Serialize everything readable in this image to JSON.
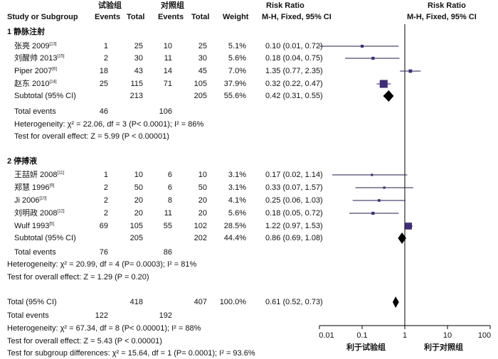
{
  "header": {
    "group1": "试验组",
    "group2": "对照组",
    "rr_title": "Risk Ratio",
    "plot_title": "Risk Ratio",
    "study_col": "Study or Subgroup",
    "events1": "Events",
    "total1": "Total",
    "events2": "Events",
    "total2": "Total",
    "weight": "Weight",
    "method": "M-H, Fixed, 95% CI",
    "plot_method": "M-H, Fixed, 95% CI"
  },
  "subgroups": [
    {
      "title": "1 静脉注射",
      "studies": [
        {
          "name": "张亮 2009",
          "ref": "[13]",
          "e1": "1",
          "t1": "25",
          "e2": "10",
          "t2": "25",
          "weight": "5.1%",
          "ci": "0.10 (0.01, 0.72)"
        },
        {
          "name": "刘醒帅 2013",
          "ref": "[15]",
          "e1": "2",
          "t1": "30",
          "e2": "11",
          "t2": "30",
          "weight": "5.6%",
          "ci": "0.18 (0.04, 0.75)"
        },
        {
          "name": "Piper 2007",
          "ref": "[6]",
          "e1": "18",
          "t1": "43",
          "e2": "14",
          "t2": "45",
          "weight": "7.0%",
          "ci": "1.35 (0.77, 2.35)"
        },
        {
          "name": "赵东 2010",
          "ref": "[14]",
          "e1": "25",
          "t1": "115",
          "e2": "71",
          "t2": "105",
          "weight": "37.9%",
          "ci": "0.32 (0.22, 0.47)"
        }
      ],
      "subtotal": {
        "label": "Subtotal (95% CI)",
        "t1": "213",
        "t2": "205",
        "weight": "55.6%",
        "ci": "0.42 (0.31, 0.55)"
      },
      "total_events": {
        "label": "Total events",
        "e1": "46",
        "e2": "106"
      },
      "heterogeneity": "Heterogeneity: χ² = 22.06, df = 3 (P< 0.0001); I² = 86%",
      "overall": "Test for overall effect: Z = 5.99 (P < 0.00001)"
    },
    {
      "title": "2 停搏液",
      "studies": [
        {
          "name": "王喆妍 2008",
          "ref": "[11]",
          "e1": "1",
          "t1": "10",
          "e2": "6",
          "t2": "10",
          "weight": "3.1%",
          "ci": "0.17 (0.02, 1.14)"
        },
        {
          "name": "郑慧 1996",
          "ref": "[9]",
          "e1": "2",
          "t1": "50",
          "e2": "6",
          "t2": "50",
          "weight": "3.1%",
          "ci": "0.33 (0.07, 1.57)"
        },
        {
          "name": "Ji 2006",
          "ref": "[10]",
          "e1": "2",
          "t1": "20",
          "e2": "8",
          "t2": "20",
          "weight": "4.1%",
          "ci": "0.25 (0.06, 1.03)"
        },
        {
          "name": "刘明政 2008",
          "ref": "[12]",
          "e1": "2",
          "t1": "20",
          "e2": "11",
          "t2": "20",
          "weight": "5.6%",
          "ci": "0.18 (0.05, 0.72)"
        },
        {
          "name": "Wulf 1993",
          "ref": "[5]",
          "e1": "69",
          "t1": "105",
          "e2": "55",
          "t2": "102",
          "weight": "28.5%",
          "ci": "1.22 (0.97, 1.53)"
        }
      ],
      "subtotal": {
        "label": "Subtotal (95% CI)",
        "t1": "205",
        "t2": "202",
        "weight": "44.4%",
        "ci": "0.86 (0.69, 1.08)"
      },
      "total_events": {
        "label": "Total events",
        "e1": "76",
        "e2": "86"
      },
      "heterogeneity": "Heterogeneity: χ² = 20.99, df = 4 (P= 0.0003); I² = 81%",
      "overall": "Test for overall effect: Z = 1.29 (P = 0.20)"
    }
  ],
  "total": {
    "label": "Total (95% CI)",
    "t1": "418",
    "t2": "407",
    "weight": "100.0%",
    "ci": "0.61 (0.52, 0.73)"
  },
  "total_events": {
    "label": "Total events",
    "e1": "122",
    "e2": "192"
  },
  "footer": {
    "heterogeneity": "Heterogeneity: χ² = 67.34, df = 8 (P< 0.00001); I² = 88%",
    "overall": "Test for overall effect: Z = 5.43 (P < 0.00001)",
    "subgroup": "Test for subgroup differences: χ² = 15.64, df = 1 (P= 0.0001); I² = 93.6%"
  },
  "axis": {
    "ticks": [
      "0.01",
      "0.1",
      "1",
      "10",
      "100"
    ],
    "favors_left": "利于试验组",
    "favors_right": "利于对照组"
  },
  "chart_data": {
    "type": "forest",
    "scale": "log",
    "xlim": [
      0.01,
      100
    ],
    "x_ticks": [
      0.01,
      0.1,
      1,
      10,
      100
    ],
    "reference_line": 1,
    "studies": [
      {
        "name": "张亮 2009",
        "rr": 0.1,
        "lo": 0.01,
        "hi": 0.72,
        "weight": 5.1
      },
      {
        "name": "刘醒帅 2013",
        "rr": 0.18,
        "lo": 0.04,
        "hi": 0.75,
        "weight": 5.6
      },
      {
        "name": "Piper 2007",
        "rr": 1.35,
        "lo": 0.77,
        "hi": 2.35,
        "weight": 7.0
      },
      {
        "name": "赵东 2010",
        "rr": 0.32,
        "lo": 0.22,
        "hi": 0.47,
        "weight": 37.9
      },
      {
        "name": "王喆妍 2008",
        "rr": 0.17,
        "lo": 0.02,
        "hi": 1.14,
        "weight": 3.1
      },
      {
        "name": "郑慧 1996",
        "rr": 0.33,
        "lo": 0.07,
        "hi": 1.57,
        "weight": 3.1
      },
      {
        "name": "Ji 2006",
        "rr": 0.25,
        "lo": 0.06,
        "hi": 1.03,
        "weight": 4.1
      },
      {
        "name": "刘明政 2008",
        "rr": 0.18,
        "lo": 0.05,
        "hi": 0.72,
        "weight": 5.6
      },
      {
        "name": "Wulf 1993",
        "rr": 1.22,
        "lo": 0.97,
        "hi": 1.53,
        "weight": 28.5
      }
    ],
    "pooled": [
      {
        "name": "Subtotal 1",
        "rr": 0.42,
        "lo": 0.31,
        "hi": 0.55
      },
      {
        "name": "Subtotal 2",
        "rr": 0.86,
        "lo": 0.69,
        "hi": 1.08
      },
      {
        "name": "Total",
        "rr": 0.61,
        "lo": 0.52,
        "hi": 0.73
      }
    ],
    "colors": {
      "square": "#3f2d7a",
      "diamond": "#000000",
      "line": "#1c1c4a"
    }
  }
}
